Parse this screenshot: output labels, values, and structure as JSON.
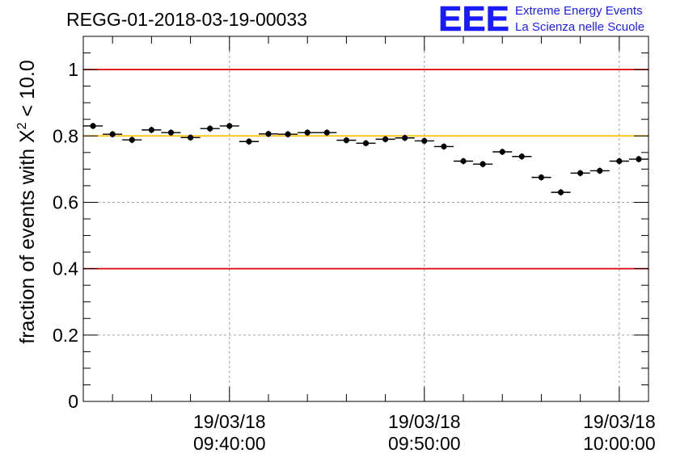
{
  "run_title": "REGG-01-2018-03-19-00033",
  "logo": {
    "text": "EEE",
    "line1": "Extreme Energy Events",
    "line2": "La Scienza nelle Scuole",
    "color": "#1a1aff"
  },
  "chart_data": {
    "type": "scatter",
    "title": "REGG-01-2018-03-19-00033",
    "xlabel": "",
    "ylabel_prefix": "fraction of events with ",
    "ylabel_symbol": "X",
    "ylabel_sup": "2",
    "ylabel_suffix": " < 10.0",
    "x_unit": "minutes since 09:33:00",
    "xlim": [
      0,
      29
    ],
    "ylim": [
      0,
      1.1
    ],
    "y_ticks": [
      0,
      0.2,
      0.4,
      0.6,
      0.8,
      1
    ],
    "y_tick_labels": [
      "0",
      "0.2",
      "0.4",
      "0.6",
      "0.8",
      "1"
    ],
    "x_major_ticks": [
      {
        "x": 7.5,
        "date": "19/03/18",
        "time": "09:40:00"
      },
      {
        "x": 17.5,
        "date": "19/03/18",
        "time": "09:50:00"
      },
      {
        "x": 27.5,
        "date": "19/03/18",
        "time": "10:00:00"
      }
    ],
    "grid": true,
    "reference_lines": [
      {
        "y": 1.0,
        "color": "#e00000"
      },
      {
        "y": 0.8,
        "color": "#ffc000"
      },
      {
        "y": 0.4,
        "color": "#e00000"
      }
    ],
    "bin_width": 1,
    "x": [
      0.5,
      1.5,
      2.5,
      3.5,
      4.5,
      5.5,
      6.5,
      7.5,
      8.5,
      9.5,
      10.5,
      11.5,
      12.5,
      13.5,
      14.5,
      15.5,
      16.5,
      17.5,
      18.5,
      19.5,
      20.5,
      21.5,
      22.5,
      23.5,
      24.5,
      25.5,
      26.5,
      27.5,
      28.5
    ],
    "values": [
      0.83,
      0.805,
      0.788,
      0.818,
      0.81,
      0.795,
      0.822,
      0.83,
      0.783,
      0.806,
      0.805,
      0.81,
      0.81,
      0.787,
      0.778,
      0.79,
      0.794,
      0.785,
      0.768,
      0.724,
      0.715,
      0.752,
      0.738,
      0.675,
      0.63,
      0.688,
      0.695,
      0.724,
      0.73
    ]
  }
}
